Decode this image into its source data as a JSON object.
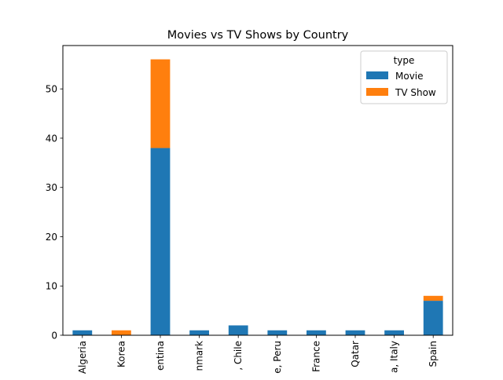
{
  "chart_data": {
    "type": "bar",
    "stacked": true,
    "title": "Movies vs TV Shows by Country",
    "xlabel": "",
    "ylabel": "",
    "ylim": [
      0,
      58.8
    ],
    "yticks": [
      0,
      10,
      20,
      30,
      40,
      50
    ],
    "grid": false,
    "legend_title": "type",
    "legend_position": "top-right",
    "categories": [
      "Algeria",
      "Korea",
      "Argentina",
      "Denmark",
      ", Chile",
      ", Peru",
      "France",
      "Qatar",
      ", Italy",
      "Spain"
    ],
    "category_labels_visible": [
      "Algeria",
      "Korea",
      "entina",
      "nmark",
      ", Chile",
      "e, Peru",
      "France",
      "Qatar",
      "a, Italy",
      "Spain"
    ],
    "series": [
      {
        "name": "Movie",
        "color": "#1f77b4",
        "values": [
          1,
          0,
          38,
          1,
          2,
          1,
          1,
          1,
          1,
          7
        ]
      },
      {
        "name": "TV Show",
        "color": "#ff7f0e",
        "values": [
          0,
          1,
          18,
          0,
          0,
          0,
          0,
          0,
          0,
          1
        ]
      }
    ]
  }
}
